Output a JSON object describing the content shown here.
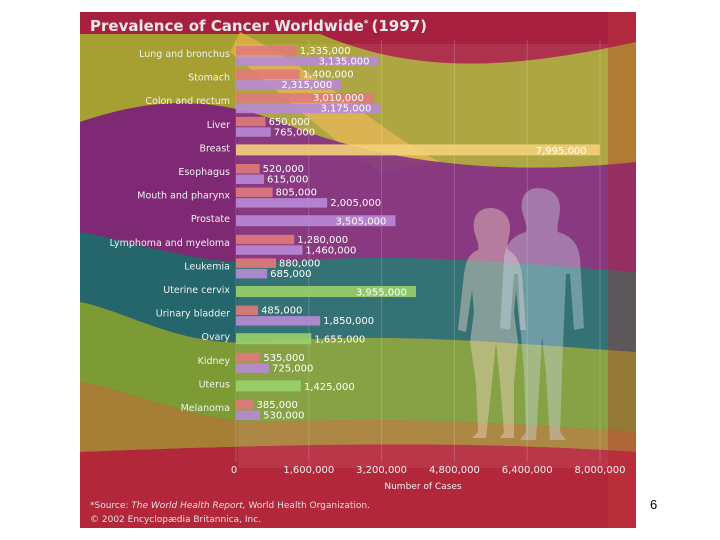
{
  "slide_number": "6",
  "chart_data": {
    "type": "bar",
    "orientation": "horizontal",
    "title": "Prevalence of Cancer Worldwide",
    "title_mark": "*",
    "title_year": "(1997)",
    "xlabel": "Number of Cases",
    "xlim": [
      0,
      8000000
    ],
    "xticks": [
      0,
      1600000,
      3200000,
      4800000,
      6400000,
      8000000
    ],
    "xtick_labels": [
      "0",
      "1,600,000",
      "3,200,000",
      "4,800,000",
      "6,400,000",
      "8,000,000"
    ],
    "categories": [
      {
        "label": "Lung and bronchus",
        "bars": [
          {
            "value": 1335000,
            "text": "1,335,000"
          },
          {
            "value": 3135000,
            "text": "3,135,000"
          }
        ]
      },
      {
        "label": "Stomach",
        "bars": [
          {
            "value": 1400000,
            "text": "1,400,000"
          },
          {
            "value": 2315000,
            "text": "2,315,000"
          }
        ]
      },
      {
        "label": "Colon and rectum",
        "bars": [
          {
            "value": 3010000,
            "text": "3,010,000"
          },
          {
            "value": 3175000,
            "text": "3,175,000"
          }
        ]
      },
      {
        "label": "Liver",
        "bars": [
          {
            "value": 650000,
            "text": "650,000"
          },
          {
            "value": 765000,
            "text": "765,000"
          }
        ]
      },
      {
        "label": "Breast",
        "bars": [
          {
            "value": 7995000,
            "text": "7,995,000"
          }
        ]
      },
      {
        "label": "Esophagus",
        "bars": [
          {
            "value": 520000,
            "text": "520,000"
          },
          {
            "value": 615000,
            "text": "615,000"
          }
        ]
      },
      {
        "label": "Mouth and pharynx",
        "bars": [
          {
            "value": 805000,
            "text": "805,000"
          },
          {
            "value": 2005000,
            "text": "2,005,000"
          }
        ]
      },
      {
        "label": "Prostate",
        "bars": [
          {
            "value": 3505000,
            "text": "3,505,000"
          }
        ]
      },
      {
        "label": "Lymphoma and myeloma",
        "bars": [
          {
            "value": 1280000,
            "text": "1,280,000"
          },
          {
            "value": 1460000,
            "text": "1,460,000"
          }
        ]
      },
      {
        "label": "Leukemia",
        "bars": [
          {
            "value": 880000,
            "text": "880,000"
          },
          {
            "value": 685000,
            "text": "685,000"
          }
        ]
      },
      {
        "label": "Uterine cervix",
        "bars": [
          {
            "value": 3955000,
            "text": "3,955,000"
          }
        ]
      },
      {
        "label": "Urinary bladder",
        "bars": [
          {
            "value": 485000,
            "text": "485,000"
          },
          {
            "value": 1850000,
            "text": "1,850,000"
          }
        ]
      },
      {
        "label": "Ovary",
        "bars": [
          {
            "value": 1655000,
            "text": "1,655,000"
          }
        ]
      },
      {
        "label": "Kidney",
        "bars": [
          {
            "value": 535000,
            "text": "535,000"
          },
          {
            "value": 725000,
            "text": "725,000"
          }
        ]
      },
      {
        "label": "Uterus",
        "bars": [
          {
            "value": 1425000,
            "text": "1,425,000"
          }
        ]
      },
      {
        "label": "Melanoma",
        "bars": [
          {
            "value": 385000,
            "text": "385,000"
          },
          {
            "value": 530000,
            "text": "530,000"
          }
        ]
      }
    ],
    "source_prefix": "*Source: ",
    "source_italic": "The World Health Report,",
    "source_suffix": " World Health Organization.",
    "copyright": "© 2002 Encyclopædia Britannica, Inc.",
    "colors": {
      "female_bar": "#e07a7a",
      "male_bar": "#b889d6",
      "breast_bar": "#f3d27a",
      "single_bar": "#9ad06a",
      "band_crimson": "#a8203f",
      "band_olive": "#a5a632",
      "band_purple": "#7c2a78",
      "band_teal": "#1c6a6e",
      "band_green": "#7aa235",
      "band_red": "#b4283a",
      "band_orange": "#e6b24a"
    }
  }
}
